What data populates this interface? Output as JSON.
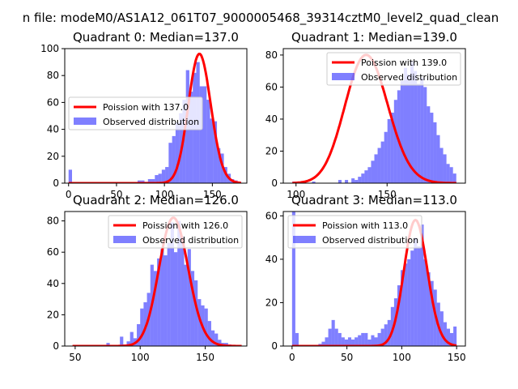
{
  "suptitle": "n file: modeM0/AS1A12_061T07_9000005468_39314cztM0_level2_quad_clean",
  "colors": {
    "observed": "#0000ff",
    "poisson": "#ff0000",
    "axis": "#000000"
  },
  "chart_data": [
    {
      "type": "bar",
      "title": "Quadrant 0: Median=137.0",
      "median": 137.0,
      "xlim": [
        -4,
        186
      ],
      "ylim": [
        0,
        100
      ],
      "xticks": [
        0,
        50,
        100,
        150
      ],
      "xtick_labels": [
        "0",
        "50",
        "100",
        "150"
      ],
      "yticks": [
        0,
        20,
        40,
        60,
        80,
        100
      ],
      "ytick_labels": [
        "0",
        "20",
        "40",
        "60",
        "80",
        "100"
      ],
      "legend": {
        "placement": "center-left",
        "entries": [
          "Poission with 137.0",
          "Observed distribution"
        ]
      },
      "observed_distribution": {
        "bin_edges": [
          0,
          3.6,
          7.2,
          10.8,
          14.4,
          18,
          21.6,
          25.2,
          28.8,
          32.4,
          36,
          39.6,
          43.2,
          46.8,
          50.4,
          54,
          57.6,
          61.2,
          64.8,
          68.4,
          72,
          75.6,
          79.2,
          82.8,
          86.4,
          90,
          93.6,
          97.2,
          100.8,
          104.4,
          108,
          111.6,
          115.2,
          118.8,
          122.4,
          126,
          129.6,
          133.2,
          136.8,
          140.4,
          144,
          147.6,
          151.2,
          154.8,
          158.4,
          162,
          165.6,
          169.2,
          172.8,
          176.4,
          180
        ],
        "counts": [
          10,
          0,
          0,
          0,
          0,
          0,
          0,
          0,
          0,
          0,
          0,
          0,
          0,
          0,
          0,
          0,
          0,
          0,
          0,
          0,
          2,
          2,
          1,
          3,
          3,
          6,
          7,
          10,
          12,
          30,
          35,
          45,
          52,
          62,
          84,
          68,
          82,
          90,
          72,
          72,
          62,
          48,
          46,
          26,
          22,
          12,
          7,
          3,
          2,
          1
        ]
      },
      "poisson_curve": {
        "mean": 137.0,
        "peak": 96
      }
    },
    {
      "type": "bar",
      "title": "Quadrant 1: Median=139.0",
      "median": 139.0,
      "xlim": [
        93,
        193
      ],
      "ylim": [
        0,
        84
      ],
      "xticks": [
        100,
        150
      ],
      "xtick_labels": [
        "100",
        "150"
      ],
      "yticks": [
        0,
        20,
        40,
        60,
        80
      ],
      "ytick_labels": [
        "0",
        "20",
        "40",
        "60",
        "80"
      ],
      "legend": {
        "placement": "top-right",
        "entries": [
          "Poission with 139.0",
          "Observed distribution"
        ]
      },
      "observed_distribution": {
        "bin_edges": [],
        "counts": []
      },
      "poisson_curve": {
        "mean": 139.0,
        "peak": 80
      }
    },
    {
      "type": "bar",
      "title": "Quadrant 2: Median=126.0",
      "median": 126.0,
      "xlim": [
        42,
        182
      ],
      "ylim": [
        0,
        86
      ],
      "xticks": [
        50,
        100,
        150
      ],
      "xtick_labels": [
        "50",
        "100",
        "150"
      ],
      "yticks": [
        0,
        20,
        40,
        60,
        80
      ],
      "ytick_labels": [
        "0",
        "20",
        "40",
        "60",
        "80"
      ],
      "legend": {
        "placement": "top-right",
        "entries": [
          "Poission with 126.0",
          "Observed distribution"
        ]
      },
      "observed_distribution": {
        "bin_edges": [
          48,
          50.6,
          53.2,
          55.8,
          58.4,
          61,
          63.6,
          66.2,
          68.8,
          71.4,
          74,
          76.6,
          79.2,
          81.8,
          84.4,
          87,
          89.6,
          92.2,
          94.8,
          97.4,
          100,
          102.6,
          105.2,
          107.8,
          110.4,
          113,
          115.6,
          118.2,
          120.8,
          123.4,
          126,
          128.6,
          131.2,
          133.8,
          136.4,
          139,
          141.6,
          144.2,
          146.8,
          149.4,
          152,
          154.6,
          157.2,
          159.8,
          162.4,
          165,
          167.6,
          170.2,
          172.8,
          175.4,
          178
        ],
        "counts": [
          0,
          0,
          0,
          0,
          0,
          0,
          0,
          0,
          0,
          0,
          2,
          0,
          0,
          0,
          6,
          1,
          3,
          9,
          5,
          14,
          24,
          28,
          34,
          52,
          48,
          56,
          62,
          58,
          66,
          79,
          60,
          80,
          70,
          52,
          62,
          48,
          42,
          30,
          26,
          24,
          16,
          10,
          8,
          4,
          2,
          2,
          1,
          0,
          0,
          0
        ]
      },
      "poisson_curve": {
        "mean": 126.0,
        "peak": 82
      }
    },
    {
      "type": "bar",
      "title": "Quadrant 3: Median=113.0",
      "median": 113.0,
      "xlim": [
        -8,
        158
      ],
      "ylim": [
        0,
        62
      ],
      "xticks": [
        0,
        50,
        100,
        150
      ],
      "xtick_labels": [
        "0",
        "50",
        "100",
        "150"
      ],
      "yticks": [
        0,
        20,
        40,
        60
      ],
      "ytick_labels": [
        "0",
        "20",
        "40",
        "60"
      ],
      "legend": {
        "placement": "top-left",
        "entries": [
          "Poission with 113.0",
          "Observed distribution"
        ]
      },
      "observed_distribution": {
        "bin_edges": [
          0,
          3,
          6,
          9,
          12,
          15,
          18,
          21,
          24,
          27,
          30,
          33,
          36,
          39,
          42,
          45,
          48,
          51,
          54,
          57,
          60,
          63,
          66,
          69,
          72,
          75,
          78,
          81,
          84,
          87,
          90,
          93,
          96,
          99,
          102,
          105,
          108,
          111,
          114,
          117,
          120,
          123,
          126,
          129,
          132,
          135,
          138,
          141,
          144,
          147,
          150
        ],
        "counts": [
          62,
          6,
          0,
          0,
          0,
          0,
          0,
          0,
          1,
          2,
          4,
          8,
          12,
          8,
          6,
          4,
          3,
          4,
          3,
          4,
          5,
          6,
          6,
          3,
          5,
          4,
          6,
          8,
          10,
          12,
          18,
          22,
          28,
          35,
          38,
          40,
          44,
          50,
          46,
          56,
          40,
          34,
          30,
          26,
          20,
          16,
          11,
          8,
          6,
          9
        ]
      },
      "poisson_curve": {
        "mean": 113.0,
        "peak": 58
      }
    }
  ]
}
